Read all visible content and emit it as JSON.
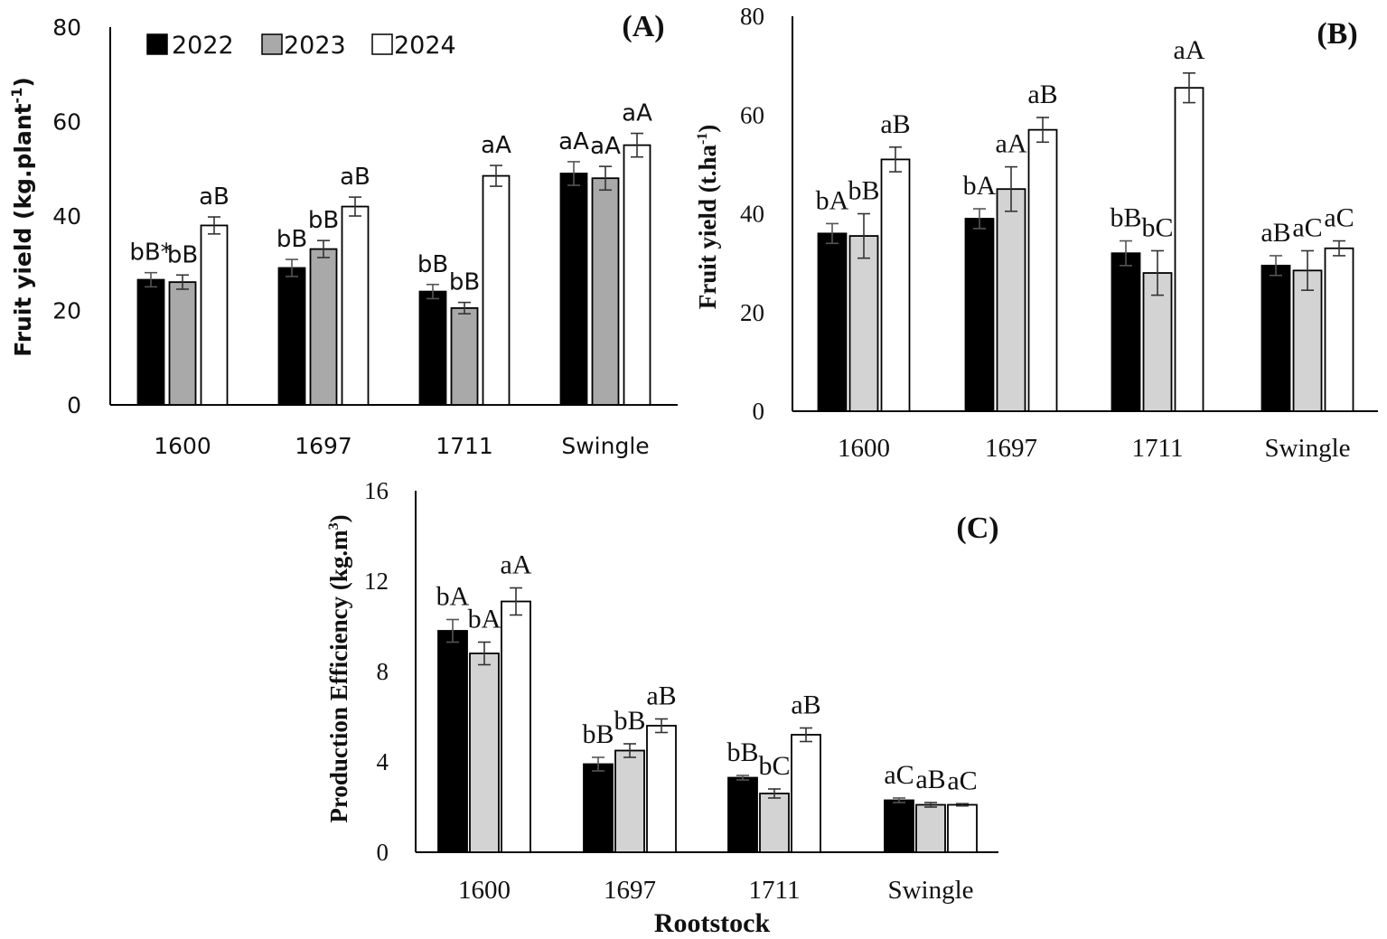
{
  "legend": {
    "entries": [
      {
        "label": "2022",
        "color": "#000000"
      },
      {
        "label": "2023",
        "color": "#a9a9a9"
      },
      {
        "label": "2024",
        "color": "#ffffff"
      }
    ]
  },
  "x_axis_label": "Rootstock",
  "chart_data": [
    {
      "type": "bar",
      "panel": "(A)",
      "title": "(A)",
      "ylabel": "Fruit yield (kg.plant",
      "ylabel_sup": "-1",
      "ylabel_close": ")",
      "ylim": [
        0,
        80
      ],
      "yticks": [
        "0",
        "20",
        "40",
        "60",
        "80"
      ],
      "categories": [
        "1600",
        "1697",
        "1711",
        "Swingle"
      ],
      "series": [
        {
          "name": "2022",
          "color": "#000000",
          "values": [
            26.5,
            29,
            24,
            49
          ],
          "errors": [
            1.5,
            1.8,
            1.5,
            2.5
          ],
          "labels": [
            "bB*",
            "bB",
            "bB",
            "aA"
          ]
        },
        {
          "name": "2023",
          "color": "#a9a9a9",
          "values": [
            26,
            33,
            20.5,
            48
          ],
          "errors": [
            1.5,
            1.8,
            1.2,
            2.5
          ],
          "labels": [
            "bB",
            "bB",
            "bB",
            "aA"
          ]
        },
        {
          "name": "2024",
          "color": "#ffffff",
          "values": [
            38,
            42,
            48.5,
            55
          ],
          "errors": [
            1.8,
            2.0,
            2.2,
            2.5
          ],
          "labels": [
            "aB",
            "aB",
            "aA",
            "aA"
          ]
        }
      ]
    },
    {
      "type": "bar",
      "panel": "(B)",
      "title": "(B)",
      "ylabel": "Fruit yield (t.ha",
      "ylabel_sup": "-1",
      "ylabel_close": ")",
      "ylim": [
        0,
        80
      ],
      "yticks": [
        "0",
        "20",
        "40",
        "60",
        "80"
      ],
      "categories": [
        "1600",
        "1697",
        "1711",
        "Swingle"
      ],
      "series": [
        {
          "name": "2022",
          "color": "#000000",
          "values": [
            36,
            39,
            32,
            29.5
          ],
          "errors": [
            2.0,
            2.0,
            2.5,
            2.0
          ],
          "labels": [
            "bA",
            "bA",
            "bB",
            "aB"
          ]
        },
        {
          "name": "2023",
          "color": "#d3d3d3",
          "values": [
            35.5,
            45,
            28,
            28.5
          ],
          "errors": [
            4.5,
            4.5,
            4.5,
            4.0
          ],
          "labels": [
            "bB",
            "aA",
            "bC",
            "aC"
          ]
        },
        {
          "name": "2024",
          "color": "#ffffff",
          "values": [
            51,
            57,
            65.5,
            33
          ],
          "errors": [
            2.5,
            2.5,
            3.0,
            1.5
          ],
          "labels": [
            "aB",
            "aB",
            "aA",
            "aC"
          ]
        }
      ]
    },
    {
      "type": "bar",
      "panel": "(C)",
      "title": "(C)",
      "ylabel": "Production Efficiency (kg.m",
      "ylabel_sup": "3",
      "ylabel_close": ")",
      "ylim": [
        0,
        16
      ],
      "yticks": [
        "0",
        "4",
        "8",
        "12",
        "16"
      ],
      "categories": [
        "1600",
        "1697",
        "1711",
        "Swingle"
      ],
      "series": [
        {
          "name": "2022",
          "color": "#000000",
          "values": [
            9.8,
            3.9,
            3.3,
            2.3
          ],
          "errors": [
            0.5,
            0.3,
            0.1,
            0.1
          ],
          "labels": [
            "bA",
            "bB",
            "bB",
            "aC"
          ]
        },
        {
          "name": "2023",
          "color": "#d3d3d3",
          "values": [
            8.8,
            4.5,
            2.6,
            2.1
          ],
          "errors": [
            0.5,
            0.3,
            0.2,
            0.1
          ],
          "labels": [
            "bA",
            "bB",
            "bC",
            "aB"
          ]
        },
        {
          "name": "2024",
          "color": "#ffffff",
          "values": [
            11.1,
            5.6,
            5.2,
            2.1
          ],
          "errors": [
            0.6,
            0.3,
            0.3,
            0.05
          ],
          "labels": [
            "aA",
            "aB",
            "aB",
            "aC"
          ]
        }
      ]
    }
  ]
}
